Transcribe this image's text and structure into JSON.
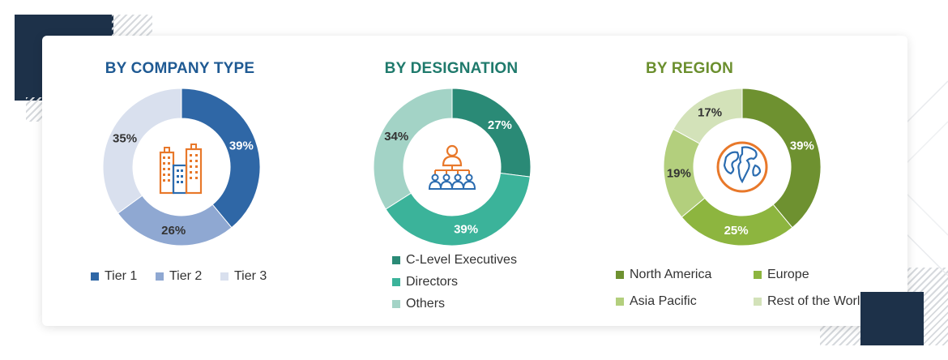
{
  "colors": {
    "navy_deco": "#1d3149",
    "company_title": "#1f5a93",
    "designation_title": "#1f7a6c",
    "region_title": "#6b8f2e",
    "icon_orange": "#e8782a",
    "icon_blue": "#2b6cb0"
  },
  "chart_data": [
    {
      "type": "pie",
      "title": "BY COMPANY TYPE",
      "categories": [
        "Tier 1",
        "Tier 2",
        "Tier 3"
      ],
      "values": [
        39,
        26,
        35
      ],
      "labels": [
        "39%",
        "26%",
        "35%"
      ],
      "colors": [
        "#2f67a6",
        "#8fa8d2",
        "#d9e0ee"
      ],
      "label_colors": [
        "#ffffff",
        "#333333",
        "#333333"
      ],
      "legend_position": "bottom",
      "center_icon": "buildings-icon"
    },
    {
      "type": "pie",
      "title": "BY DESIGNATION",
      "categories": [
        "C-Level Executives",
        "Directors",
        "Others"
      ],
      "values": [
        27,
        39,
        34
      ],
      "labels": [
        "27%",
        "39%",
        "34%"
      ],
      "colors": [
        "#2a8a76",
        "#3bb39a",
        "#a3d3c6"
      ],
      "label_colors": [
        "#ffffff",
        "#ffffff",
        "#333333"
      ],
      "legend_position": "bottom",
      "center_icon": "hierarchy-people-icon"
    },
    {
      "type": "pie",
      "title": "BY REGION",
      "categories": [
        "North America",
        "Europe",
        "Asia Pacific",
        "Rest of the World"
      ],
      "values": [
        39,
        25,
        19,
        17
      ],
      "labels": [
        "39%",
        "25%",
        "19%",
        "17%"
      ],
      "colors": [
        "#6e9130",
        "#8db53f",
        "#b3cf7d",
        "#d3e2b9"
      ],
      "label_colors": [
        "#ffffff",
        "#ffffff",
        "#333333",
        "#333333"
      ],
      "legend_position": "bottom",
      "center_icon": "globe-icon"
    }
  ]
}
